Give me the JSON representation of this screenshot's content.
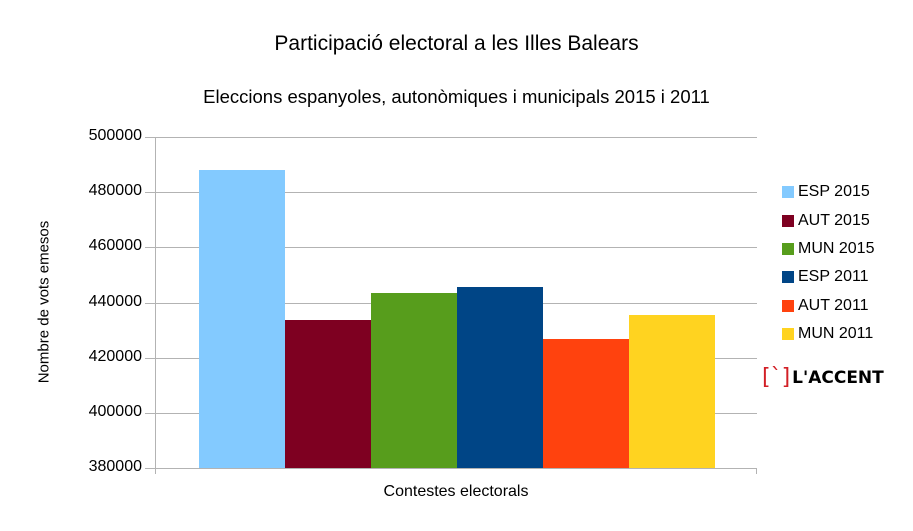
{
  "chart_data": {
    "type": "bar",
    "title": "Participació electoral a les Illes Balears",
    "subtitle": "Eleccions espanyoles, autonòmiques i municipals 2015 i 2011",
    "xlabel": "Contestes electorals",
    "ylabel": "Nombre de vots emesos",
    "ylim": [
      380000,
      500000
    ],
    "yticks": [
      "500000",
      "480000",
      "460000",
      "440000",
      "420000",
      "400000",
      "380000"
    ],
    "grid": true,
    "legend_position": "right",
    "categories": [
      "Contestes electorals"
    ],
    "series": [
      {
        "name": "ESP 2015",
        "values": [
          488000
        ],
        "color": "#83caff"
      },
      {
        "name": "AUT 2015",
        "values": [
          433800
        ],
        "color": "#7e0021"
      },
      {
        "name": "MUN 2015",
        "values": [
          443500
        ],
        "color": "#579d1c"
      },
      {
        "name": "ESP 2011",
        "values": [
          445500
        ],
        "color": "#004586"
      },
      {
        "name": "AUT 2011",
        "values": [
          426600
        ],
        "color": "#ff420e"
      },
      {
        "name": "MUN 2011",
        "values": [
          435400
        ],
        "color": "#ffd320"
      }
    ]
  },
  "watermark": {
    "bracket": "[`]",
    "text": "L'ACCENT"
  }
}
